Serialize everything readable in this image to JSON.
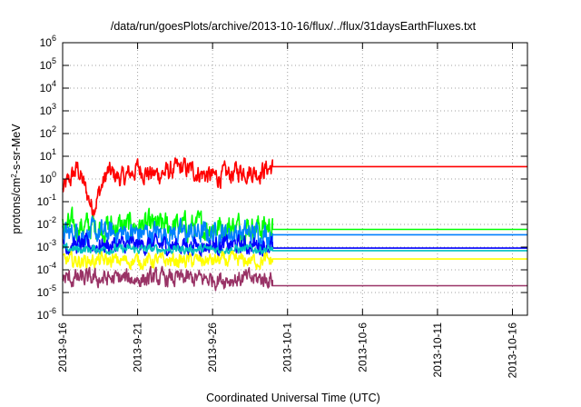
{
  "chart_data": {
    "type": "line",
    "title": "/data/run/goesPlots/archive/2013-10-16/flux/../flux/31daysEarthFluxes.txt",
    "xlabel": "Coordinated Universal Time (UTC)",
    "ylabel_base": "protons/cm",
    "ylabel_sup": "2",
    "ylabel_rest": "-s-sr-MeV",
    "y_scale": "log",
    "ylim_exp": [
      -6,
      6
    ],
    "y_ticks": [
      {
        "base": "10",
        "exp": "-6"
      },
      {
        "base": "10",
        "exp": "-5"
      },
      {
        "base": "10",
        "exp": "-4"
      },
      {
        "base": "10",
        "exp": "-3"
      },
      {
        "base": "10",
        "exp": "-2"
      },
      {
        "base": "10",
        "exp": "-1"
      },
      {
        "base": "10",
        "exp": "0"
      },
      {
        "base": "10",
        "exp": "1"
      },
      {
        "base": "10",
        "exp": "2"
      },
      {
        "base": "10",
        "exp": "3"
      },
      {
        "base": "10",
        "exp": "4"
      },
      {
        "base": "10",
        "exp": "5"
      },
      {
        "base": "10",
        "exp": "6"
      }
    ],
    "x_range_dates": [
      "2013-09-16",
      "2013-10-17"
    ],
    "x_ticks": [
      {
        "label": "2013-9-16",
        "date": "2013-09-16"
      },
      {
        "label": "2013-9-21",
        "date": "2013-09-21"
      },
      {
        "label": "2013-9-26",
        "date": "2013-09-26"
      },
      {
        "label": "2013-10-1",
        "date": "2013-10-01"
      },
      {
        "label": "2013-10-6",
        "date": "2013-10-06"
      },
      {
        "label": "2013-10-11",
        "date": "2013-10-11"
      },
      {
        "label": "2013-10-16",
        "date": "2013-10-16"
      }
    ],
    "grid": true,
    "data_end_date": "2013-09-30",
    "series": [
      {
        "color": "#ff0000",
        "baseline": 1.3,
        "noise": 0.35,
        "flat_value": 3.5,
        "x": [
          "2013-09-16",
          "2013-09-17",
          "2013-09-18",
          "2013-09-19",
          "2013-09-20",
          "2013-09-21",
          "2013-09-22",
          "2013-09-23",
          "2013-09-24",
          "2013-09-25",
          "2013-09-26",
          "2013-09-27",
          "2013-09-28",
          "2013-09-29",
          "2013-09-30"
        ],
        "values": [
          0.3,
          3,
          0.05,
          2,
          1,
          3,
          1.5,
          2,
          3,
          2,
          1.2,
          1.5,
          2.5,
          2,
          3.5
        ]
      },
      {
        "color": "#00ff00",
        "baseline": 0.008,
        "noise": 0.45,
        "flat_value": 0.006
      },
      {
        "color": "#0080ff",
        "baseline": 0.004,
        "noise": 0.4,
        "flat_value": 0.0035
      },
      {
        "color": "#0000ff",
        "baseline": 0.0012,
        "noise": 0.3,
        "flat_value": 0.0009
      },
      {
        "color": "#00c0c0",
        "baseline": 0.0008,
        "noise": 0.15,
        "flat_value": 0.0007
      },
      {
        "color": "#ffff00",
        "baseline": 0.00025,
        "noise": 0.25,
        "flat_value": 0.0003
      },
      {
        "color": "#993366",
        "baseline": 4e-05,
        "noise": 0.3,
        "flat_value": 2e-05
      }
    ]
  }
}
